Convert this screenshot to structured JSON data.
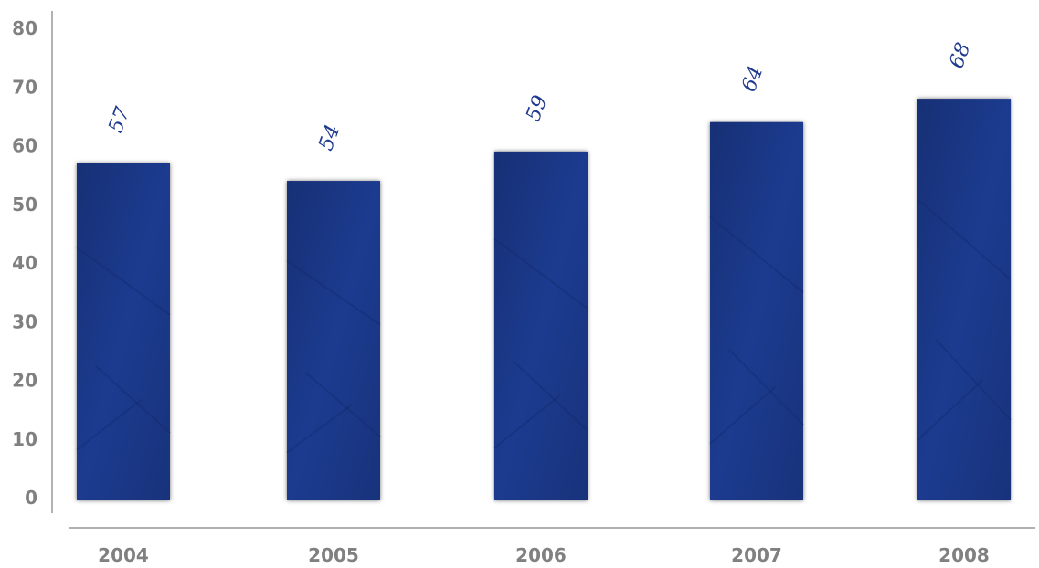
{
  "chart_data": {
    "type": "bar",
    "title": "",
    "xlabel": "",
    "ylabel": "",
    "categories": [
      "2004",
      "2005",
      "2006",
      "2007",
      "2008"
    ],
    "values": [
      57,
      54,
      59,
      64,
      68
    ],
    "data_labels": [
      "57",
      "54",
      "59",
      "64",
      "68"
    ],
    "ylim": [
      0,
      80
    ],
    "yticks": [
      "0",
      "10",
      "20",
      "30",
      "40",
      "50",
      "60",
      "70",
      "80"
    ],
    "grid": false,
    "legend": "none",
    "colors": {
      "bar": "#1f3a8f",
      "bar_dark": "#142a6e",
      "tick_text": "#808080",
      "axis_line": "#808080",
      "data_label": "#1f3a8f"
    }
  }
}
